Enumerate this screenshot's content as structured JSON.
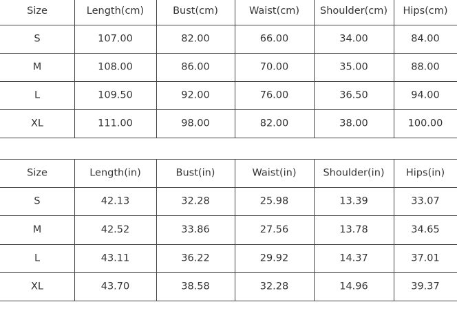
{
  "tables": [
    {
      "header": [
        "Size",
        "Length(cm)",
        "Bust(cm)",
        "Waist(cm)",
        "Shoulder(cm)",
        "Hips(cm)"
      ],
      "rows": [
        [
          "S",
          "107.00",
          "82.00",
          "66.00",
          "34.00",
          "84.00"
        ],
        [
          "M",
          "108.00",
          "86.00",
          "70.00",
          "35.00",
          "88.00"
        ],
        [
          "L",
          "109.50",
          "92.00",
          "76.00",
          "36.50",
          "94.00"
        ],
        [
          "XL",
          "111.00",
          "98.00",
          "82.00",
          "38.00",
          "100.00"
        ]
      ]
    },
    {
      "header": [
        "Size",
        "Length(in)",
        "Bust(in)",
        "Waist(in)",
        "Shoulder(in)",
        "Hips(in)"
      ],
      "rows": [
        [
          "S",
          "42.13",
          "32.28",
          "25.98",
          "13.39",
          "33.07"
        ],
        [
          "M",
          "42.52",
          "33.86",
          "27.56",
          "13.78",
          "34.65"
        ],
        [
          "L",
          "43.11",
          "36.22",
          "29.92",
          "14.37",
          "37.01"
        ],
        [
          "XL",
          "43.70",
          "38.58",
          "32.28",
          "14.96",
          "39.37"
        ]
      ]
    }
  ]
}
